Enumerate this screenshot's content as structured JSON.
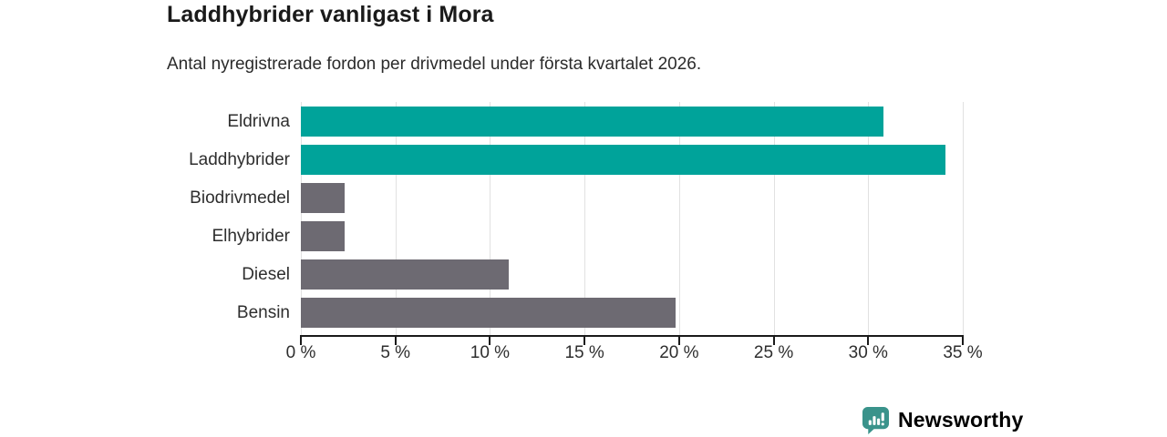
{
  "title": "Laddhybrider vanligast i Mora",
  "subtitle": "Antal nyregistrerade fordon per drivmedel under första kvartalet 2026.",
  "chart_data": {
    "type": "bar",
    "orientation": "horizontal",
    "title": "Laddhybrider vanligast i Mora",
    "subtitle": "Antal nyregistrerade fordon per drivmedel under första kvartalet 2026.",
    "categories": [
      "Eldrivna",
      "Laddhybrider",
      "Biodrivmedel",
      "Elhybrider",
      "Diesel",
      "Bensin"
    ],
    "values": [
      30.8,
      34.1,
      2.3,
      2.3,
      11.0,
      19.8
    ],
    "bar_colors": [
      "#00a39a",
      "#00a39a",
      "#6d6a72",
      "#6d6a72",
      "#6d6a72",
      "#6d6a72"
    ],
    "xlim": [
      0,
      35
    ],
    "x_tick_values": [
      0,
      5,
      10,
      15,
      20,
      25,
      30,
      35
    ],
    "x_tick_labels": [
      "0 %",
      "5 %",
      "10 %",
      "15 %",
      "20 %",
      "25 %",
      "30 %",
      "35 %"
    ],
    "xlabel": "",
    "ylabel": "",
    "grid": true,
    "legend": false
  },
  "colors": {
    "highlight_bar": "#00a39a",
    "default_bar": "#6d6a72",
    "gridline": "#e1e1e1",
    "axis": "#1a1a1a",
    "text": "#2e2e2e",
    "brand_teal": "#3a938b"
  },
  "branding": {
    "label": "Newsworthy",
    "icon": "newsworthy-logo-icon"
  }
}
